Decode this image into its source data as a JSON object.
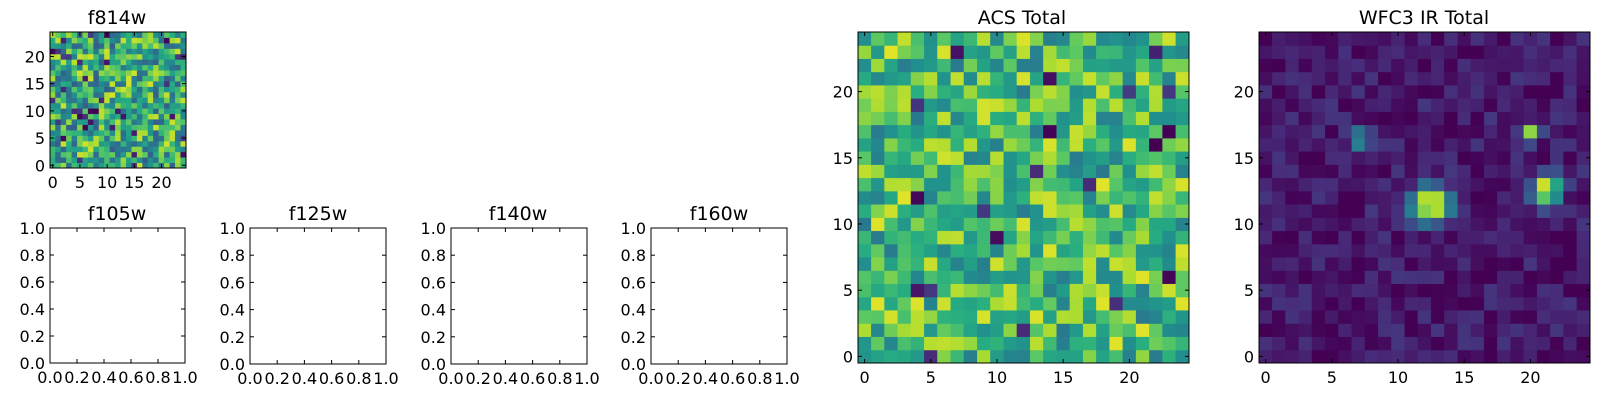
{
  "chart_data": [
    {
      "type": "heatmap",
      "title": "f814w",
      "grid_size": 25,
      "colormap": "viridis",
      "x_ticks": [
        "0",
        "5",
        "10",
        "15",
        "20"
      ],
      "y_ticks": [
        "0",
        "5",
        "10",
        "15",
        "20"
      ],
      "xlim": [
        -0.5,
        24.5
      ],
      "ylim": [
        -0.5,
        24.5
      ],
      "seed": 11,
      "value_range": [
        0,
        1
      ],
      "background_mean": 0.62,
      "background_spread": 0.32,
      "dark_pixel_fraction": 0.06,
      "sources": []
    },
    {
      "type": "empty",
      "title": "f105w",
      "x_ticks": [
        "0.0",
        "0.2",
        "0.4",
        "0.6",
        "0.8",
        "1.0"
      ],
      "y_ticks": [
        "0.0",
        "0.2",
        "0.4",
        "0.6",
        "0.8",
        "1.0"
      ],
      "xlim": [
        0,
        1
      ],
      "ylim": [
        0,
        1
      ]
    },
    {
      "type": "empty",
      "title": "f125w",
      "x_ticks": [
        "0.0",
        "0.2",
        "0.4",
        "0.6",
        "0.8",
        "1.0"
      ],
      "y_ticks": [
        "0.0",
        "0.2",
        "0.4",
        "0.6",
        "0.8",
        "1.0"
      ],
      "xlim": [
        0,
        1
      ],
      "ylim": [
        0,
        1
      ]
    },
    {
      "type": "empty",
      "title": "f140w",
      "x_ticks": [
        "0.0",
        "0.2",
        "0.4",
        "0.6",
        "0.8",
        "1.0"
      ],
      "y_ticks": [
        "0.0",
        "0.2",
        "0.4",
        "0.6",
        "0.8",
        "1.0"
      ],
      "xlim": [
        0,
        1
      ],
      "ylim": [
        0,
        1
      ]
    },
    {
      "type": "empty",
      "title": "f160w",
      "x_ticks": [
        "0.0",
        "0.2",
        "0.4",
        "0.6",
        "0.8",
        "1.0"
      ],
      "y_ticks": [
        "0.0",
        "0.2",
        "0.4",
        "0.6",
        "0.8",
        "1.0"
      ],
      "xlim": [
        0,
        1
      ],
      "ylim": [
        0,
        1
      ]
    },
    {
      "type": "heatmap",
      "title": "ACS Total",
      "grid_size": 25,
      "colormap": "viridis",
      "x_ticks": [
        "0",
        "5",
        "10",
        "15",
        "20"
      ],
      "y_ticks": [
        "0",
        "5",
        "10",
        "15",
        "20"
      ],
      "xlim": [
        -0.5,
        24.5
      ],
      "ylim": [
        -0.5,
        24.5
      ],
      "seed": 29,
      "value_range": [
        0,
        1
      ],
      "background_mean": 0.68,
      "background_spread": 0.28,
      "dark_pixel_fraction": 0.03,
      "sources": []
    },
    {
      "type": "heatmap",
      "title": "WFC3 IR Total",
      "grid_size": 25,
      "colormap": "viridis",
      "x_ticks": [
        "0",
        "5",
        "10",
        "15",
        "20"
      ],
      "y_ticks": [
        "0",
        "5",
        "10",
        "15",
        "20"
      ],
      "xlim": [
        -0.5,
        24.5
      ],
      "ylim": [
        -0.5,
        24.5
      ],
      "seed": 47,
      "value_range": [
        0,
        1
      ],
      "background_mean": 0.07,
      "background_spread": 0.09,
      "dark_pixel_fraction": 0,
      "sources": [
        {
          "x": 12.5,
          "y": 11.5,
          "peak": 0.97,
          "width": 1.0
        },
        {
          "x": 21.2,
          "y": 12.6,
          "peak": 0.92,
          "width": 0.75
        },
        {
          "x": 7.0,
          "y": 16.4,
          "peak": 0.55,
          "width": 0.55
        },
        {
          "x": 20.0,
          "y": 16.8,
          "peak": 0.9,
          "width": 0.45
        }
      ]
    }
  ]
}
